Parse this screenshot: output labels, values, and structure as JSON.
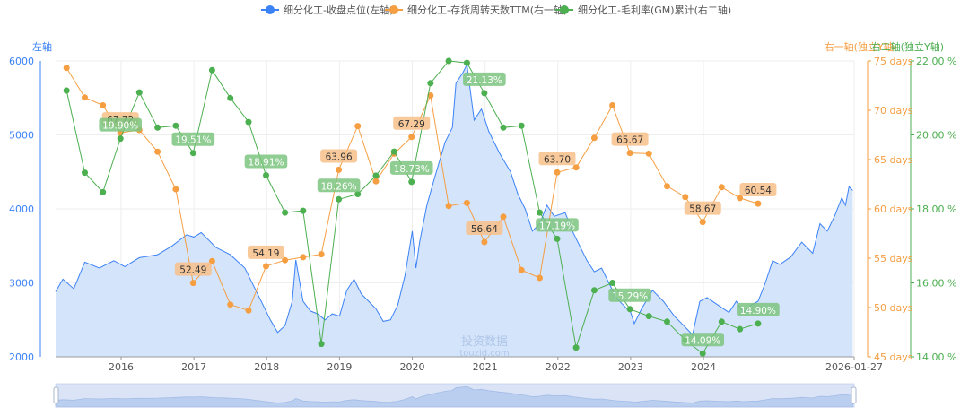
{
  "legend": {
    "items": [
      {
        "label": "细分化工-收盘点位(左轴)",
        "color": "#3b82f6"
      },
      {
        "label": "细分化工-存货周转天数TTM(右一轴)",
        "color": "#f59e42"
      },
      {
        "label": "细分化工-毛利率(GM)累计(右二轴)",
        "color": "#4caf50"
      }
    ]
  },
  "axis_titles": {
    "left": "左轴",
    "right1": "右一轴(独立Y轴)",
    "right2": "右二轴(独立Y轴)"
  },
  "watermark": {
    "line1": "投资数据",
    "line2": "touzid.com"
  },
  "colors": {
    "left": "#3b82f6",
    "right1": "#f59e42",
    "right2": "#4caf50",
    "area_fill": "#cfe1fb",
    "grid": "#eeeeee"
  },
  "chart_data": {
    "type": "line",
    "x_ticks": [
      "2016",
      "2017",
      "2018",
      "2019",
      "2020",
      "2021",
      "2022",
      "2023",
      "2024",
      "2026-01-27"
    ],
    "axes": {
      "left": {
        "ticks": [
          "2000",
          "3000",
          "4000",
          "5000",
          "6000"
        ],
        "range": [
          2000,
          6000
        ]
      },
      "right1": {
        "ticks": [
          "45 days",
          "50 days",
          "55 days",
          "60 days",
          "65 days",
          "70 days",
          "75 days"
        ],
        "range": [
          45,
          75
        ],
        "unit": "days"
      },
      "right2": {
        "ticks": [
          "14.00 %",
          "16.00 %",
          "18.00 %",
          "20.00 %",
          "22.00 %"
        ],
        "range": [
          14,
          22
        ],
        "unit": "%"
      }
    },
    "x_range": [
      2015.1,
      2026.07
    ],
    "series": [
      {
        "name": "细分化工-收盘点位",
        "axis": "left",
        "style": "area",
        "points": [
          [
            2015.1,
            2880
          ],
          [
            2015.2,
            3050
          ],
          [
            2015.35,
            2920
          ],
          [
            2015.5,
            3280
          ],
          [
            2015.7,
            3200
          ],
          [
            2015.9,
            3300
          ],
          [
            2016.05,
            3220
          ],
          [
            2016.25,
            3340
          ],
          [
            2016.5,
            3380
          ],
          [
            2016.7,
            3500
          ],
          [
            2016.9,
            3650
          ],
          [
            2017.0,
            3620
          ],
          [
            2017.1,
            3680
          ],
          [
            2017.3,
            3480
          ],
          [
            2017.5,
            3380
          ],
          [
            2017.7,
            3200
          ],
          [
            2017.85,
            2900
          ],
          [
            2017.95,
            2700
          ],
          [
            2018.05,
            2500
          ],
          [
            2018.15,
            2330
          ],
          [
            2018.25,
            2420
          ],
          [
            2018.35,
            2750
          ],
          [
            2018.4,
            3310
          ],
          [
            2018.5,
            2750
          ],
          [
            2018.6,
            2620
          ],
          [
            2018.7,
            2580
          ],
          [
            2018.8,
            2500
          ],
          [
            2018.9,
            2580
          ],
          [
            2019.0,
            2550
          ],
          [
            2019.1,
            2900
          ],
          [
            2019.2,
            3050
          ],
          [
            2019.3,
            2850
          ],
          [
            2019.4,
            2750
          ],
          [
            2019.5,
            2650
          ],
          [
            2019.6,
            2480
          ],
          [
            2019.7,
            2500
          ],
          [
            2019.8,
            2700
          ],
          [
            2019.9,
            3100
          ],
          [
            2020.0,
            3700
          ],
          [
            2020.05,
            3200
          ],
          [
            2020.1,
            3550
          ],
          [
            2020.2,
            4050
          ],
          [
            2020.3,
            4400
          ],
          [
            2020.45,
            4900
          ],
          [
            2020.55,
            5100
          ],
          [
            2020.6,
            5700
          ],
          [
            2020.7,
            5850
          ],
          [
            2020.75,
            5950
          ],
          [
            2020.85,
            5200
          ],
          [
            2020.95,
            5350
          ],
          [
            2021.05,
            5050
          ],
          [
            2021.2,
            4750
          ],
          [
            2021.35,
            4500
          ],
          [
            2021.45,
            4200
          ],
          [
            2021.55,
            4000
          ],
          [
            2021.65,
            3700
          ],
          [
            2021.75,
            3800
          ],
          [
            2021.85,
            4050
          ],
          [
            2021.95,
            3900
          ],
          [
            2022.1,
            3950
          ],
          [
            2022.2,
            3700
          ],
          [
            2022.3,
            3500
          ],
          [
            2022.4,
            3300
          ],
          [
            2022.5,
            3150
          ],
          [
            2022.6,
            3200
          ],
          [
            2022.7,
            3000
          ],
          [
            2022.8,
            2800
          ],
          [
            2022.9,
            2700
          ],
          [
            2023.0,
            2600
          ],
          [
            2023.05,
            2450
          ],
          [
            2023.15,
            2650
          ],
          [
            2023.3,
            2900
          ],
          [
            2023.45,
            2750
          ],
          [
            2023.6,
            2550
          ],
          [
            2023.75,
            2400
          ],
          [
            2023.85,
            2300
          ],
          [
            2023.95,
            2750
          ],
          [
            2024.05,
            2800
          ],
          [
            2024.2,
            2700
          ],
          [
            2024.35,
            2600
          ],
          [
            2024.45,
            2750
          ],
          [
            2024.55,
            2600
          ],
          [
            2024.65,
            2700
          ],
          [
            2024.75,
            2750
          ],
          [
            2024.85,
            3000
          ],
          [
            2024.95,
            3300
          ],
          [
            2025.05,
            3250
          ],
          [
            2025.2,
            3350
          ],
          [
            2025.35,
            3550
          ],
          [
            2025.5,
            3400
          ],
          [
            2025.6,
            3800
          ],
          [
            2025.7,
            3700
          ],
          [
            2025.8,
            3900
          ],
          [
            2025.9,
            4150
          ],
          [
            2025.95,
            4050
          ],
          [
            2026.0,
            4300
          ],
          [
            2026.05,
            4250
          ]
        ]
      },
      {
        "name": "细分化工-存货周转天数TTM",
        "axis": "right1",
        "style": "line",
        "points": [
          [
            2015.25,
            74.3
          ],
          [
            2015.5,
            71.3
          ],
          [
            2015.75,
            70.5
          ],
          [
            2015.99,
            67.72
          ],
          [
            2016.25,
            68.0
          ],
          [
            2016.5,
            65.8
          ],
          [
            2016.75,
            62.0
          ],
          [
            2016.99,
            52.49
          ],
          [
            2017.25,
            54.7
          ],
          [
            2017.5,
            50.3
          ],
          [
            2017.75,
            49.7
          ],
          [
            2017.99,
            54.19
          ],
          [
            2018.25,
            54.8
          ],
          [
            2018.5,
            55.1
          ],
          [
            2018.75,
            55.4
          ],
          [
            2018.99,
            63.96
          ],
          [
            2019.25,
            68.4
          ],
          [
            2019.5,
            62.8
          ],
          [
            2019.75,
            65.6
          ],
          [
            2019.99,
            67.29
          ],
          [
            2020.25,
            71.5
          ],
          [
            2020.5,
            60.3
          ],
          [
            2020.75,
            60.6
          ],
          [
            2020.99,
            56.64
          ],
          [
            2021.25,
            59.2
          ],
          [
            2021.5,
            53.8
          ],
          [
            2021.75,
            53.0
          ],
          [
            2021.99,
            63.7
          ],
          [
            2022.25,
            64.2
          ],
          [
            2022.5,
            67.2
          ],
          [
            2022.75,
            70.5
          ],
          [
            2022.99,
            65.67
          ],
          [
            2023.25,
            65.6
          ],
          [
            2023.5,
            62.3
          ],
          [
            2023.75,
            61.2
          ],
          [
            2023.99,
            58.67
          ],
          [
            2024.25,
            62.2
          ],
          [
            2024.5,
            61.1
          ],
          [
            2024.75,
            60.54
          ]
        ],
        "data_labels": [
          "67.72",
          "52.49",
          "54.19",
          "63.96",
          "67.29",
          "56.64",
          "63.70",
          "65.67",
          "58.67",
          "60.54"
        ]
      },
      {
        "name": "细分化工-毛利率(GM)累计",
        "axis": "right2",
        "style": "line",
        "points": [
          [
            2015.25,
            21.2
          ],
          [
            2015.5,
            18.98
          ],
          [
            2015.75,
            18.45
          ],
          [
            2015.99,
            19.9
          ],
          [
            2016.25,
            21.15
          ],
          [
            2016.5,
            20.2
          ],
          [
            2016.75,
            20.25
          ],
          [
            2016.99,
            19.51
          ],
          [
            2017.25,
            21.75
          ],
          [
            2017.5,
            21.0
          ],
          [
            2017.75,
            20.35
          ],
          [
            2017.99,
            18.91
          ],
          [
            2018.25,
            17.9
          ],
          [
            2018.5,
            17.95
          ],
          [
            2018.75,
            14.35
          ],
          [
            2018.99,
            18.26
          ],
          [
            2019.25,
            18.4
          ],
          [
            2019.5,
            18.9
          ],
          [
            2019.75,
            19.55
          ],
          [
            2019.99,
            18.73
          ],
          [
            2020.25,
            21.4
          ],
          [
            2020.5,
            22.0
          ],
          [
            2020.75,
            21.95
          ],
          [
            2020.99,
            21.13
          ],
          [
            2021.25,
            20.2
          ],
          [
            2021.5,
            20.25
          ],
          [
            2021.75,
            17.9
          ],
          [
            2021.99,
            17.19
          ],
          [
            2022.25,
            14.25
          ],
          [
            2022.5,
            15.8
          ],
          [
            2022.75,
            16.0
          ],
          [
            2022.99,
            15.29
          ],
          [
            2023.25,
            15.1
          ],
          [
            2023.5,
            14.95
          ],
          [
            2023.75,
            14.45
          ],
          [
            2023.99,
            14.09
          ],
          [
            2024.25,
            14.95
          ],
          [
            2024.5,
            14.75
          ],
          [
            2024.75,
            14.9
          ]
        ],
        "data_labels": [
          "19.90%",
          "19.51%",
          "18.91%",
          "18.26%",
          "18.73%",
          "21.13%",
          "17.19%",
          "15.29%",
          "14.09%",
          "14.90%"
        ]
      }
    ],
    "grid": true,
    "legend_position": "top-center"
  }
}
